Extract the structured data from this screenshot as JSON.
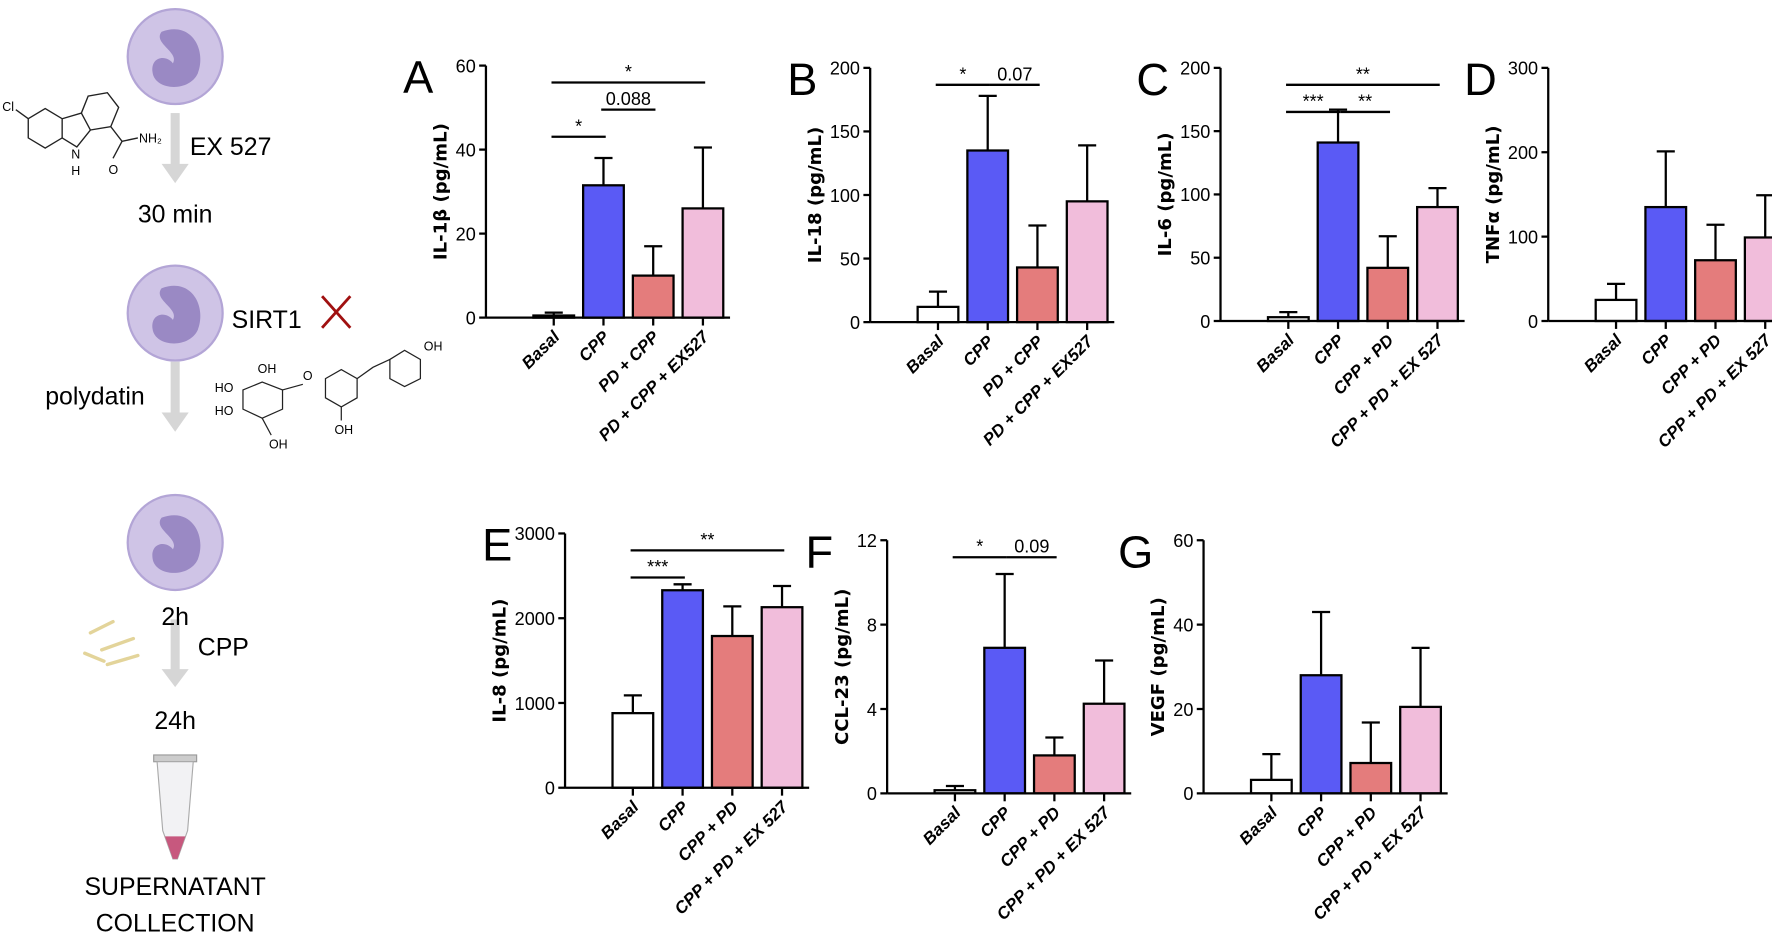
{
  "diagram": {
    "ex527": "EX 527",
    "t30": "30 min",
    "sirt1": "SIRT1",
    "polydatin": "polydatin",
    "t2h": "2h",
    "cpp": "CPP",
    "t24h": "24h",
    "collection1": "SUPERNATANT",
    "collection2": "COLLECTION",
    "atoms": {
      "cl": "Cl",
      "n": "N",
      "h": "H",
      "nh2": "NH₂",
      "o": "O",
      "oh": "OH",
      "ho": "HO"
    },
    "cell_color": "#c9bde3",
    "nucleus_color": "#9d8dc4",
    "cross_color": "#a01010"
  },
  "chart_data": [
    {
      "type": "bar",
      "letter": "A",
      "ylabel": "IL-1β (pg/mL)",
      "ylim": [
        0,
        60
      ],
      "ticks": [
        0,
        20,
        40,
        60
      ],
      "categories": [
        "Basal",
        "CPP",
        "PD + CPP",
        "PD + CPP + EX527"
      ],
      "values": [
        0.5,
        31.5,
        10,
        26
      ],
      "error_upper": [
        1.2,
        38,
        17,
        40.5
      ],
      "colors": [
        "#ffffff",
        "#5a5af5",
        "#e47c7c",
        "#f1bddb"
      ],
      "significance": [
        {
          "from": 0,
          "to": 3,
          "label": "*",
          "row": 0
        },
        {
          "from": 1,
          "to": 2,
          "label": "0.088",
          "row": 1
        },
        {
          "from": 0,
          "to": 1,
          "label": "*",
          "row": 2
        }
      ]
    },
    {
      "type": "bar",
      "letter": "B",
      "ylabel": "IL-18 (pg/mL)",
      "ylim": [
        0,
        200
      ],
      "ticks": [
        0,
        50,
        100,
        150,
        200
      ],
      "categories": [
        "Basal",
        "CPP",
        "PD + CPP",
        "PD + CPP + EX527"
      ],
      "values": [
        12,
        135,
        43,
        95
      ],
      "error_upper": [
        24,
        178,
        76,
        139
      ],
      "colors": [
        "#ffffff",
        "#5a5af5",
        "#e47c7c",
        "#f1bddb"
      ],
      "significance": [
        {
          "from": 0,
          "to": 1,
          "label": "*",
          "row": 0
        },
        {
          "from": 1,
          "to": 2,
          "label": "0.07",
          "row": 0
        }
      ]
    },
    {
      "type": "bar",
      "letter": "C",
      "ylabel": "IL-6 (pg/mL)",
      "ylim": [
        0,
        200
      ],
      "ticks": [
        0,
        50,
        100,
        150,
        200
      ],
      "categories": [
        "Basal",
        "CPP",
        "CPP + PD",
        "CPP + PD + EX 527"
      ],
      "values": [
        3,
        141,
        42,
        90
      ],
      "error_upper": [
        7,
        167,
        67,
        105
      ],
      "colors": [
        "#ffffff",
        "#5a5af5",
        "#e47c7c",
        "#f1bddb"
      ],
      "significance": [
        {
          "from": 0,
          "to": 3,
          "label": "**",
          "row": 0
        },
        {
          "from": 0,
          "to": 1,
          "label": "***",
          "row": 1
        },
        {
          "from": 1,
          "to": 2,
          "label": "**",
          "row": 1
        }
      ]
    },
    {
      "type": "bar",
      "letter": "D",
      "ylabel": "TNFα (pg/mL)",
      "ylim": [
        0,
        300
      ],
      "ticks": [
        0,
        100,
        200,
        300
      ],
      "categories": [
        "Basal",
        "CPP",
        "CPP + PD",
        "CPP + PD + EX 527"
      ],
      "values": [
        25,
        135,
        72,
        99
      ],
      "error_upper": [
        44,
        201,
        114,
        149
      ],
      "colors": [
        "#ffffff",
        "#5a5af5",
        "#e47c7c",
        "#f1bddb"
      ],
      "significance": []
    },
    {
      "type": "bar",
      "letter": "E",
      "ylabel": "IL-8 (pg/mL)",
      "ylim": [
        0,
        3000
      ],
      "ticks": [
        0,
        1000,
        2000,
        3000
      ],
      "categories": [
        "Basal",
        "CPP",
        "CPP + PD",
        "CPP + PD + EX 527"
      ],
      "values": [
        880,
        2330,
        1790,
        2130
      ],
      "error_upper": [
        1090,
        2400,
        2140,
        2380
      ],
      "colors": [
        "#ffffff",
        "#5a5af5",
        "#e47c7c",
        "#f1bddb"
      ],
      "significance": [
        {
          "from": 0,
          "to": 3,
          "label": "**",
          "row": 0
        },
        {
          "from": 0,
          "to": 1,
          "label": "***",
          "row": 1
        }
      ]
    },
    {
      "type": "bar",
      "letter": "F",
      "ylabel": "CCL-23 (pg/mL)",
      "ylim": [
        0,
        12
      ],
      "ticks": [
        0,
        4,
        8,
        12
      ],
      "categories": [
        "Basal",
        "CPP",
        "CPP + PD",
        "CPP + PD + EX 527"
      ],
      "values": [
        0.15,
        6.9,
        1.8,
        4.25
      ],
      "error_upper": [
        0.35,
        10.4,
        2.65,
        6.3
      ],
      "colors": [
        "#ffffff",
        "#5a5af5",
        "#e47c7c",
        "#f1bddb"
      ],
      "significance": [
        {
          "from": 0,
          "to": 1,
          "label": "*",
          "row": 0
        },
        {
          "from": 1,
          "to": 2,
          "label": "0.09",
          "row": 0
        }
      ]
    },
    {
      "type": "bar",
      "letter": "G",
      "ylabel": "VEGF (pg/mL)",
      "ylim": [
        0,
        60
      ],
      "ticks": [
        0,
        20,
        40,
        60
      ],
      "categories": [
        "Basal",
        "CPP",
        "CPP + PD",
        "CPP + PD + EX 527"
      ],
      "values": [
        3.2,
        28,
        7.2,
        20.5
      ],
      "error_upper": [
        9.3,
        43,
        16.8,
        34.5
      ],
      "colors": [
        "#ffffff",
        "#5a5af5",
        "#e47c7c",
        "#f1bddb"
      ],
      "significance": []
    }
  ]
}
